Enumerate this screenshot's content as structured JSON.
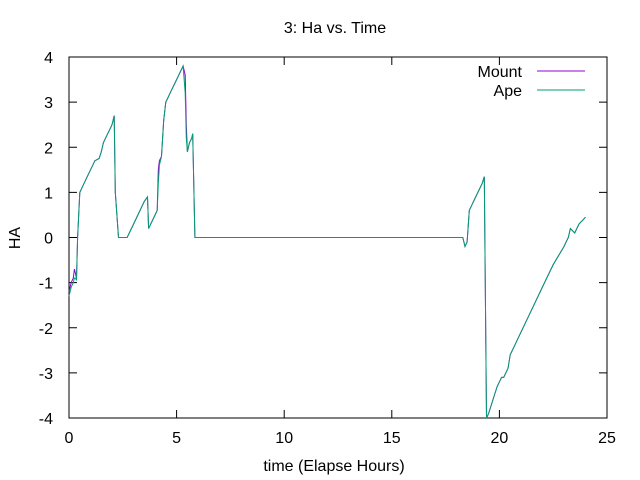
{
  "chart_data": {
    "type": "line",
    "title": "3: Ha vs. Time",
    "xlabel": "time (Elapse Hours)",
    "ylabel": "HA",
    "xlim": [
      0,
      25
    ],
    "ylim": [
      -4,
      4
    ],
    "xticks": [
      0,
      5,
      10,
      15,
      20,
      25
    ],
    "yticks": [
      -4,
      -3,
      -2,
      -1,
      0,
      1,
      2,
      3,
      4
    ],
    "grid": false,
    "legend_position": "top-right",
    "series": [
      {
        "name": "Mount",
        "color": "#9400d3",
        "x": [
          0.0,
          0.1,
          0.2,
          0.25,
          0.3,
          0.35,
          0.4,
          0.45,
          0.5,
          0.6,
          0.8,
          1.0,
          1.1,
          1.2,
          1.4,
          1.5,
          1.6,
          1.8,
          1.9,
          2.0,
          2.1,
          2.15,
          2.3,
          2.5,
          2.7,
          2.8,
          3.0,
          3.5,
          3.65,
          3.7,
          4.0,
          4.1,
          4.15,
          4.2,
          4.3,
          4.4,
          4.5,
          4.6,
          4.7,
          5.0,
          5.3,
          5.4,
          5.45,
          5.5,
          5.55,
          5.6,
          5.7,
          5.75,
          5.85,
          6.0,
          8.0,
          10.0,
          12.0,
          14.0,
          16.0,
          18.0,
          18.3,
          18.4,
          18.5,
          18.6,
          18.7,
          18.9,
          19.0,
          19.2,
          19.3,
          19.4,
          19.5,
          19.7,
          19.9,
          20.1,
          20.2,
          20.4,
          20.5,
          20.7,
          21.0,
          21.5,
          22.0,
          22.5,
          23.0,
          23.2,
          23.3,
          23.5,
          23.7,
          24.0
        ],
        "y": [
          -1.2,
          -1.0,
          -0.9,
          -0.7,
          -0.8,
          -0.9,
          0.0,
          0.5,
          1.0,
          1.1,
          1.3,
          1.5,
          1.6,
          1.7,
          1.75,
          1.9,
          2.1,
          2.3,
          2.4,
          2.5,
          2.7,
          1.0,
          0.0,
          0.0,
          0.0,
          0.1,
          0.3,
          0.8,
          0.9,
          0.2,
          0.5,
          0.6,
          1.5,
          1.7,
          1.8,
          2.6,
          3.0,
          3.1,
          3.2,
          3.5,
          3.8,
          3.6,
          2.5,
          1.9,
          2.0,
          2.1,
          2.2,
          2.3,
          0.0,
          0.0,
          0.0,
          0.0,
          0.0,
          0.0,
          0.0,
          0.0,
          0.0,
          -0.2,
          -0.1,
          0.6,
          0.7,
          0.9,
          1.0,
          1.2,
          1.35,
          -4.0,
          -3.9,
          -3.6,
          -3.3,
          -3.1,
          -3.1,
          -2.9,
          -2.6,
          -2.4,
          -2.1,
          -1.6,
          -1.1,
          -0.6,
          -0.2,
          0.0,
          0.2,
          0.1,
          0.3,
          0.45
        ]
      },
      {
        "name": "Ape",
        "color": "#009e73",
        "x": [
          0.0,
          0.1,
          0.2,
          0.25,
          0.3,
          0.35,
          0.4,
          0.45,
          0.5,
          0.6,
          0.8,
          1.0,
          1.1,
          1.2,
          1.4,
          1.5,
          1.6,
          1.8,
          1.9,
          2.0,
          2.1,
          2.15,
          2.3,
          2.5,
          2.7,
          2.8,
          3.0,
          3.5,
          3.65,
          3.7,
          4.0,
          4.1,
          4.15,
          4.2,
          4.3,
          4.4,
          4.5,
          4.6,
          4.7,
          5.0,
          5.3,
          5.4,
          5.45,
          5.5,
          5.55,
          5.6,
          5.7,
          5.75,
          5.85,
          6.0,
          8.0,
          10.0,
          12.0,
          14.0,
          16.0,
          18.0,
          18.3,
          18.4,
          18.5,
          18.6,
          18.7,
          18.9,
          19.0,
          19.2,
          19.3,
          19.4,
          19.5,
          19.7,
          19.9,
          20.1,
          20.2,
          20.4,
          20.5,
          20.7,
          21.0,
          21.5,
          22.0,
          22.5,
          23.0,
          23.2,
          23.3,
          23.5,
          23.7,
          24.0
        ],
        "y": [
          -1.3,
          -1.1,
          -1.0,
          -0.9,
          -0.9,
          -0.95,
          0.0,
          0.5,
          1.0,
          1.1,
          1.3,
          1.5,
          1.6,
          1.7,
          1.75,
          1.9,
          2.1,
          2.3,
          2.4,
          2.5,
          2.7,
          1.0,
          0.0,
          0.0,
          0.0,
          0.1,
          0.3,
          0.8,
          0.9,
          0.2,
          0.5,
          0.6,
          1.2,
          1.6,
          1.8,
          2.6,
          3.0,
          3.1,
          3.2,
          3.5,
          3.8,
          3.2,
          2.2,
          1.9,
          2.0,
          2.1,
          2.2,
          2.3,
          0.0,
          0.0,
          0.0,
          0.0,
          0.0,
          0.0,
          0.0,
          0.0,
          0.0,
          -0.2,
          -0.1,
          0.6,
          0.7,
          0.9,
          1.0,
          1.2,
          1.35,
          -4.0,
          -3.9,
          -3.6,
          -3.3,
          -3.1,
          -3.1,
          -2.9,
          -2.6,
          -2.4,
          -2.1,
          -1.6,
          -1.1,
          -0.6,
          -0.2,
          0.0,
          0.2,
          0.1,
          0.3,
          0.45
        ]
      }
    ]
  }
}
